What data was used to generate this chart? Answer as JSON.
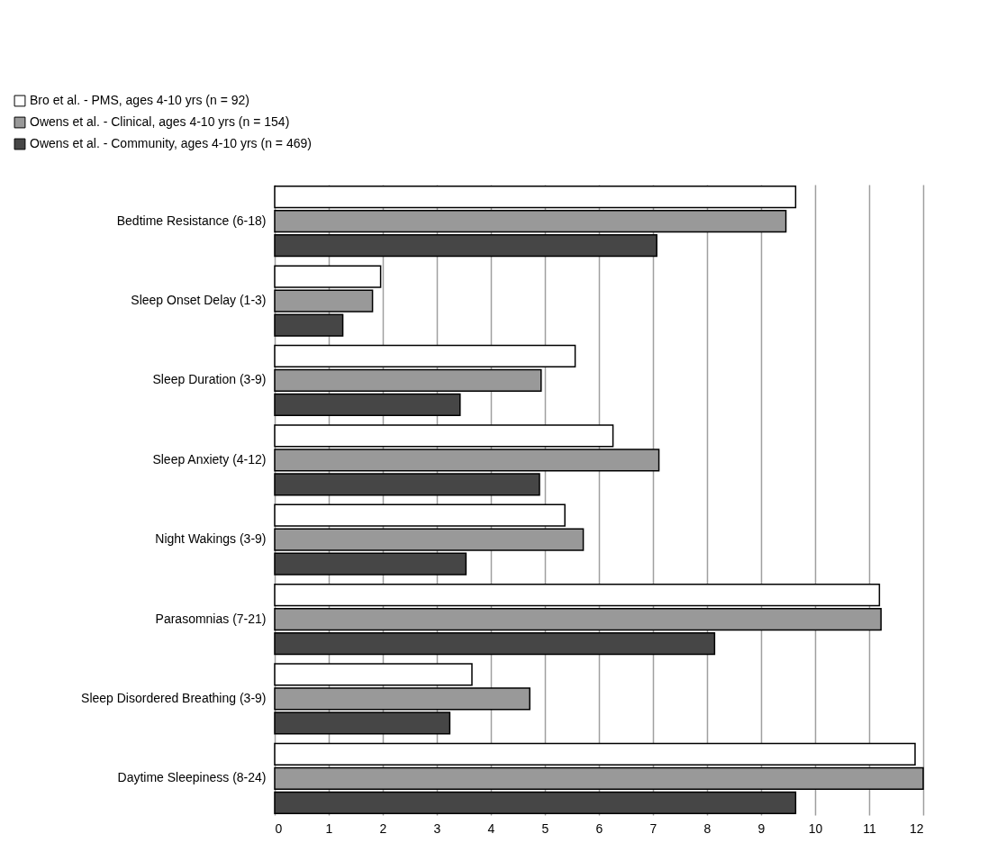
{
  "chart_data": {
    "type": "bar",
    "orientation": "horizontal",
    "categories": [
      "Bedtime Resistance (6-18)",
      "Sleep Onset Delay (1-3)",
      "Sleep Duration (3-9)",
      "Sleep Anxiety (4-12)",
      "Night Wakings (3-9)",
      "Parasomnias (7-21)",
      "Sleep Disordered Breathing (3-9)",
      "Daytime Sleepiness (8-24)"
    ],
    "series": [
      {
        "name": "Bro et al. - PMS, ages 4-10 yrs (n = 92)",
        "color": "#ffffff",
        "values": [
          9.64,
          1.96,
          5.56,
          6.26,
          5.37,
          11.19,
          3.65,
          11.85
        ]
      },
      {
        "name": "Owens et al. - Clinical, ages 4-10 yrs (n = 154)",
        "color": "#999999",
        "values": [
          9.46,
          1.81,
          4.93,
          7.11,
          5.71,
          11.22,
          4.72,
          12.0
        ]
      },
      {
        "name": "Owens et al. - Community, ages 4-10 yrs (n = 469)",
        "color": "#464646",
        "values": [
          7.07,
          1.26,
          3.43,
          4.9,
          3.54,
          8.14,
          3.24,
          9.64
        ]
      }
    ],
    "xlim": [
      0,
      12
    ],
    "xticks": [
      0,
      1,
      2,
      3,
      4,
      5,
      6,
      7,
      8,
      9,
      10,
      11,
      12
    ],
    "grid": "x",
    "legend": "top left"
  }
}
